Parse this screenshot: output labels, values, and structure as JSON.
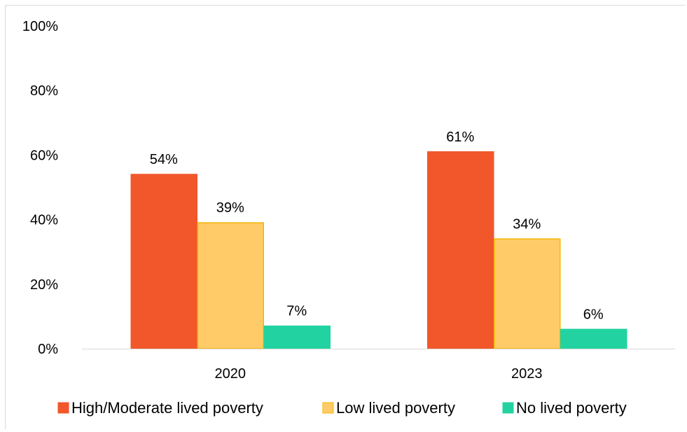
{
  "chart_data": {
    "type": "bar",
    "title": "",
    "xlabel": "",
    "ylabel": "",
    "categories": [
      "2020",
      "2023"
    ],
    "ylim": [
      0,
      100
    ],
    "yticks": [
      0,
      20,
      40,
      60,
      80,
      100
    ],
    "ytick_labels": [
      "0%",
      "20%",
      "40%",
      "60%",
      "80%",
      "100%"
    ],
    "grid": false,
    "legend_position": "bottom",
    "series": [
      {
        "name": "High/Moderate lived poverty",
        "values": [
          54,
          61
        ],
        "labels": [
          "54%",
          "61%"
        ],
        "color": "#f1572b",
        "stroke": "#f1572b"
      },
      {
        "name": "Low lived poverty",
        "values": [
          39,
          34
        ],
        "labels": [
          "39%",
          "34%"
        ],
        "color": "#ffcb69",
        "stroke": "#f5b400"
      },
      {
        "name": "No lived poverty",
        "values": [
          7,
          6
        ],
        "labels": [
          "7%",
          "6%"
        ],
        "color": "#22d3a1",
        "stroke": "#22d3a1"
      }
    ]
  }
}
